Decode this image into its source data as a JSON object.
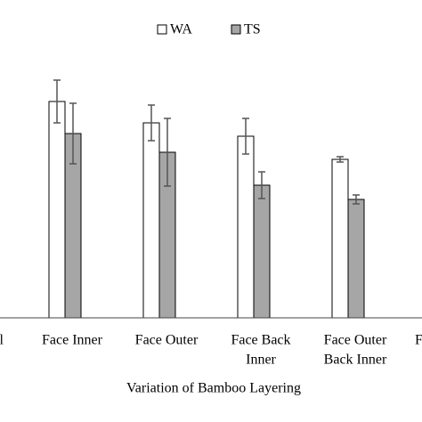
{
  "chart_data": {
    "type": "bar",
    "x_label": "Variation of Bamboo Layering",
    "categories": [
      [
        "l"
      ],
      [
        "Face Inner"
      ],
      [
        "Face Outer"
      ],
      [
        "Face Back",
        "Inner"
      ],
      [
        "Face Outer",
        "Back Inner"
      ],
      [
        "F"
      ]
    ],
    "series": [
      {
        "name": "WA",
        "color": "#ffffff",
        "values": [
          null,
          243,
          219,
          204,
          178,
          null
        ],
        "errors": [
          null,
          24,
          20,
          20,
          3,
          null
        ]
      },
      {
        "name": "TS",
        "color": "#a6a6a6",
        "values": [
          null,
          207,
          186,
          149,
          133,
          null
        ],
        "errors": [
          null,
          34,
          38,
          15,
          5,
          null
        ]
      }
    ],
    "ylim": [
      0,
      300
    ]
  }
}
